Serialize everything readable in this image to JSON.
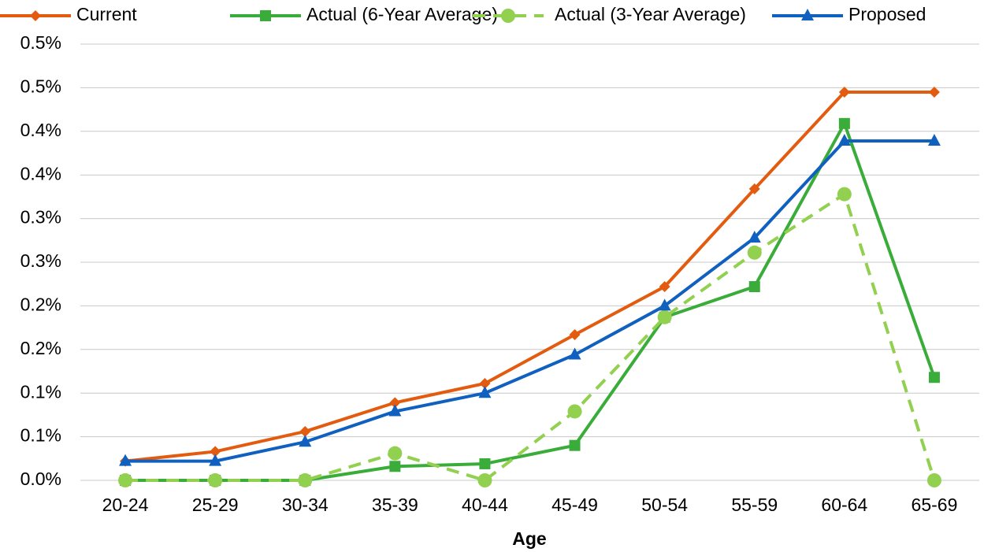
{
  "chart_data": {
    "type": "line",
    "x_label": "Age",
    "categories": [
      "20-24",
      "25-29",
      "30-34",
      "35-39",
      "40-44",
      "45-49",
      "50-54",
      "55-59",
      "60-64",
      "65-69"
    ],
    "series": [
      {
        "name": "Current",
        "color": "#e35b0f",
        "marker": "diamond",
        "dash": false,
        "values": [
          0.022,
          0.033,
          0.056,
          0.089,
          0.111,
          0.167,
          0.222,
          0.334,
          0.445,
          0.445
        ]
      },
      {
        "name": "Actual (6-Year Average)",
        "color": "#3aac3a",
        "marker": "square",
        "dash": false,
        "values": [
          0,
          0,
          0,
          0.016,
          0.019,
          0.04,
          0.187,
          0.222,
          0.409,
          0.118
        ]
      },
      {
        "name": "Actual (3-Year Average)",
        "color": "#92d050",
        "marker": "circle",
        "dash": true,
        "values": [
          0,
          0,
          0,
          0.031,
          0,
          0.079,
          0.187,
          0.261,
          0.328,
          0
        ]
      },
      {
        "name": "Proposed",
        "color": "#1060c0",
        "marker": "triangle",
        "dash": false,
        "values": [
          0.022,
          0.022,
          0.044,
          0.079,
          0.1,
          0.144,
          0.2,
          0.278,
          0.389,
          0.389
        ]
      }
    ],
    "ylim": [
      0,
      0.5
    ],
    "yticks": [
      {
        "value": 0,
        "label": "0.0%"
      },
      {
        "value": 0.05,
        "label": "0.1%"
      },
      {
        "value": 0.1,
        "label": "0.1%"
      },
      {
        "value": 0.15,
        "label": "0.2%"
      },
      {
        "value": 0.2,
        "label": "0.2%"
      },
      {
        "value": 0.25,
        "label": "0.3%"
      },
      {
        "value": 0.3,
        "label": "0.3%"
      },
      {
        "value": 0.35,
        "label": "0.4%"
      },
      {
        "value": 0.4,
        "label": "0.4%"
      },
      {
        "value": 0.45,
        "label": "0.5%"
      },
      {
        "value": 0.5,
        "label": "0.5%"
      }
    ],
    "grid": true,
    "legend": "top"
  }
}
